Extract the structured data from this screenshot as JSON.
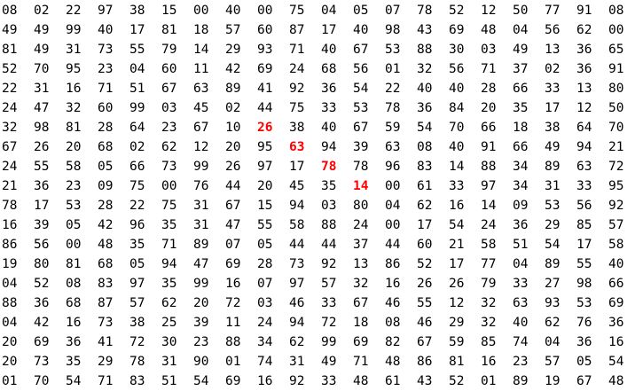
{
  "grid": {
    "highlight_color": "#ff0000",
    "text_color": "#000000",
    "highlighted": [
      {
        "row": 6,
        "col": 8
      },
      {
        "row": 7,
        "col": 9
      },
      {
        "row": 8,
        "col": 10
      },
      {
        "row": 9,
        "col": 11
      }
    ],
    "rows": [
      [
        "08",
        "02",
        "22",
        "97",
        "38",
        "15",
        "00",
        "40",
        "00",
        "75",
        "04",
        "05",
        "07",
        "78",
        "52",
        "12",
        "50",
        "77",
        "91",
        "08"
      ],
      [
        "49",
        "49",
        "99",
        "40",
        "17",
        "81",
        "18",
        "57",
        "60",
        "87",
        "17",
        "40",
        "98",
        "43",
        "69",
        "48",
        "04",
        "56",
        "62",
        "00"
      ],
      [
        "81",
        "49",
        "31",
        "73",
        "55",
        "79",
        "14",
        "29",
        "93",
        "71",
        "40",
        "67",
        "53",
        "88",
        "30",
        "03",
        "49",
        "13",
        "36",
        "65"
      ],
      [
        "52",
        "70",
        "95",
        "23",
        "04",
        "60",
        "11",
        "42",
        "69",
        "24",
        "68",
        "56",
        "01",
        "32",
        "56",
        "71",
        "37",
        "02",
        "36",
        "91"
      ],
      [
        "22",
        "31",
        "16",
        "71",
        "51",
        "67",
        "63",
        "89",
        "41",
        "92",
        "36",
        "54",
        "22",
        "40",
        "40",
        "28",
        "66",
        "33",
        "13",
        "80"
      ],
      [
        "24",
        "47",
        "32",
        "60",
        "99",
        "03",
        "45",
        "02",
        "44",
        "75",
        "33",
        "53",
        "78",
        "36",
        "84",
        "20",
        "35",
        "17",
        "12",
        "50"
      ],
      [
        "32",
        "98",
        "81",
        "28",
        "64",
        "23",
        "67",
        "10",
        "26",
        "38",
        "40",
        "67",
        "59",
        "54",
        "70",
        "66",
        "18",
        "38",
        "64",
        "70"
      ],
      [
        "67",
        "26",
        "20",
        "68",
        "02",
        "62",
        "12",
        "20",
        "95",
        "63",
        "94",
        "39",
        "63",
        "08",
        "40",
        "91",
        "66",
        "49",
        "94",
        "21"
      ],
      [
        "24",
        "55",
        "58",
        "05",
        "66",
        "73",
        "99",
        "26",
        "97",
        "17",
        "78",
        "78",
        "96",
        "83",
        "14",
        "88",
        "34",
        "89",
        "63",
        "72"
      ],
      [
        "21",
        "36",
        "23",
        "09",
        "75",
        "00",
        "76",
        "44",
        "20",
        "45",
        "35",
        "14",
        "00",
        "61",
        "33",
        "97",
        "34",
        "31",
        "33",
        "95"
      ],
      [
        "78",
        "17",
        "53",
        "28",
        "22",
        "75",
        "31",
        "67",
        "15",
        "94",
        "03",
        "80",
        "04",
        "62",
        "16",
        "14",
        "09",
        "53",
        "56",
        "92"
      ],
      [
        "16",
        "39",
        "05",
        "42",
        "96",
        "35",
        "31",
        "47",
        "55",
        "58",
        "88",
        "24",
        "00",
        "17",
        "54",
        "24",
        "36",
        "29",
        "85",
        "57"
      ],
      [
        "86",
        "56",
        "00",
        "48",
        "35",
        "71",
        "89",
        "07",
        "05",
        "44",
        "44",
        "37",
        "44",
        "60",
        "21",
        "58",
        "51",
        "54",
        "17",
        "58"
      ],
      [
        "19",
        "80",
        "81",
        "68",
        "05",
        "94",
        "47",
        "69",
        "28",
        "73",
        "92",
        "13",
        "86",
        "52",
        "17",
        "77",
        "04",
        "89",
        "55",
        "40"
      ],
      [
        "04",
        "52",
        "08",
        "83",
        "97",
        "35",
        "99",
        "16",
        "07",
        "97",
        "57",
        "32",
        "16",
        "26",
        "26",
        "79",
        "33",
        "27",
        "98",
        "66"
      ],
      [
        "88",
        "36",
        "68",
        "87",
        "57",
        "62",
        "20",
        "72",
        "03",
        "46",
        "33",
        "67",
        "46",
        "55",
        "12",
        "32",
        "63",
        "93",
        "53",
        "69"
      ],
      [
        "04",
        "42",
        "16",
        "73",
        "38",
        "25",
        "39",
        "11",
        "24",
        "94",
        "72",
        "18",
        "08",
        "46",
        "29",
        "32",
        "40",
        "62",
        "76",
        "36"
      ],
      [
        "20",
        "69",
        "36",
        "41",
        "72",
        "30",
        "23",
        "88",
        "34",
        "62",
        "99",
        "69",
        "82",
        "67",
        "59",
        "85",
        "74",
        "04",
        "36",
        "16"
      ],
      [
        "20",
        "73",
        "35",
        "29",
        "78",
        "31",
        "90",
        "01",
        "74",
        "31",
        "49",
        "71",
        "48",
        "86",
        "81",
        "16",
        "23",
        "57",
        "05",
        "54"
      ],
      [
        "01",
        "70",
        "54",
        "71",
        "83",
        "51",
        "54",
        "69",
        "16",
        "92",
        "33",
        "48",
        "61",
        "43",
        "52",
        "01",
        "89",
        "19",
        "67",
        "48"
      ]
    ]
  }
}
